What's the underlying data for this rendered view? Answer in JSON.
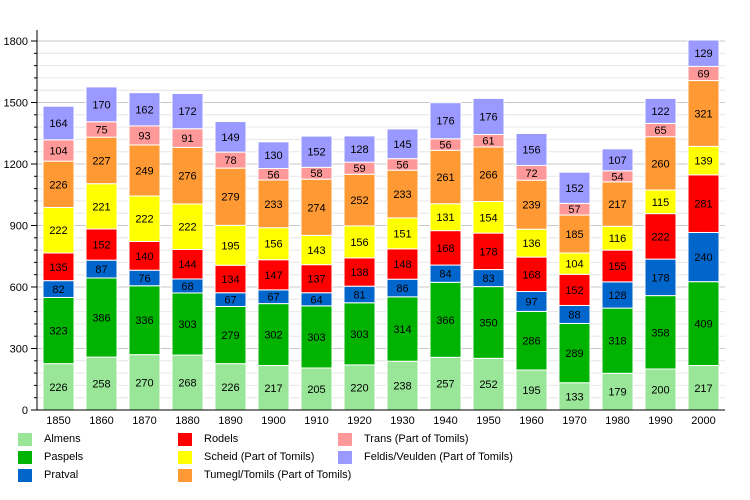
{
  "chart_data": {
    "type": "bar",
    "stacked": true,
    "title": "",
    "xlabel": "",
    "ylabel": "",
    "ylim": [
      0,
      1800
    ],
    "yticks": [
      0,
      300,
      600,
      900,
      1200,
      1500,
      1800
    ],
    "grid": true,
    "legend_position": "bottom",
    "data_labels": true,
    "categories": [
      "1850",
      "1860",
      "1870",
      "1880",
      "1890",
      "1900",
      "1910",
      "1920",
      "1930",
      "1940",
      "1950",
      "1960",
      "1970",
      "1980",
      "1990",
      "2000"
    ],
    "series": [
      {
        "name": "Almens",
        "color": "#99e699",
        "values": [
          226,
          258,
          270,
          268,
          226,
          217,
          205,
          220,
          238,
          257,
          252,
          195,
          133,
          179,
          200,
          217
        ]
      },
      {
        "name": "Paspels",
        "color": "#00b300",
        "values": [
          323,
          386,
          336,
          303,
          279,
          302,
          303,
          303,
          314,
          366,
          350,
          286,
          289,
          318,
          358,
          409
        ]
      },
      {
        "name": "Pratval",
        "color": "#0066cc",
        "values": [
          82,
          87,
          76,
          68,
          67,
          67,
          64,
          81,
          86,
          84,
          83,
          97,
          88,
          128,
          178,
          240
        ]
      },
      {
        "name": "Rodels",
        "color": "#ff0000",
        "values": [
          135,
          152,
          140,
          144,
          134,
          147,
          137,
          138,
          148,
          168,
          178,
          168,
          152,
          155,
          222,
          281
        ]
      },
      {
        "name": "Scheid (Part of Tomils)",
        "color": "#ffff00",
        "values": [
          222,
          221,
          222,
          222,
          195,
          156,
          143,
          156,
          151,
          131,
          154,
          136,
          104,
          116,
          115,
          139
        ]
      },
      {
        "name": "Tumegl/Tomils (Part of Tomils)",
        "color": "#ff9933",
        "values": [
          226,
          227,
          249,
          276,
          279,
          233,
          274,
          252,
          233,
          261,
          266,
          239,
          185,
          217,
          260,
          321
        ]
      },
      {
        "name": "Trans (Part of Tomils)",
        "color": "#ff9999",
        "values": [
          104,
          75,
          93,
          91,
          78,
          56,
          58,
          59,
          56,
          56,
          61,
          72,
          57,
          54,
          65,
          69
        ]
      },
      {
        "name": "Feldis/Veulden (Part of Tomils)",
        "color": "#9999ff",
        "values": [
          164,
          170,
          162,
          172,
          149,
          130,
          152,
          128,
          145,
          176,
          176,
          156,
          152,
          107,
          122,
          129
        ]
      }
    ]
  }
}
